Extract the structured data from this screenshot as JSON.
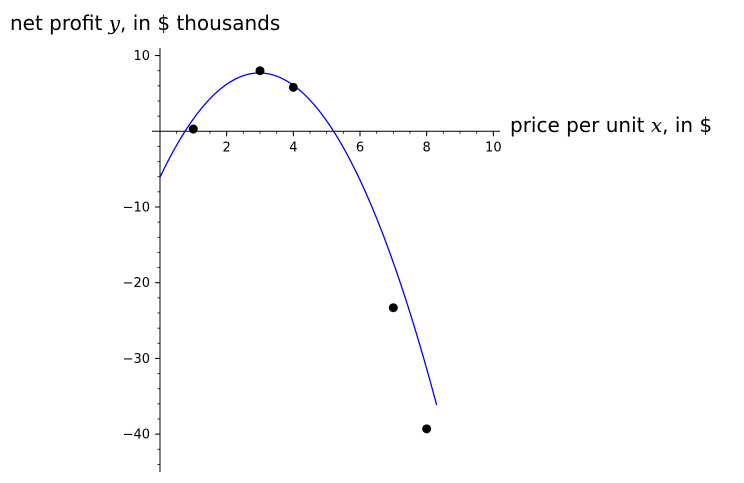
{
  "chart_data": {
    "type": "scatter",
    "xlabel": {
      "prefix": "price per unit ",
      "var": "x",
      "suffix": ", in $"
    },
    "ylabel": {
      "prefix": "net profit ",
      "var": "y",
      "suffix": ", in $ thousands"
    },
    "xlim": [
      0,
      10.2
    ],
    "ylim": [
      -45,
      11
    ],
    "x_ticks": [
      2,
      4,
      6,
      8,
      10
    ],
    "y_ticks": [
      10,
      -10,
      -20,
      -30,
      -40
    ],
    "x_tick_labels": [
      "2",
      "4",
      "6",
      "8",
      "10"
    ],
    "y_tick_labels": [
      "10",
      "−10",
      "−20",
      "−30",
      "−40"
    ],
    "x_minor_step": 0.5,
    "y_minor_step": 2,
    "grid": false,
    "points": {
      "x": [
        1,
        3,
        4,
        7,
        8
      ],
      "y": [
        0.3,
        8,
        5.8,
        -23.3,
        -39.3
      ]
    },
    "curve": {
      "kind": "quadratic",
      "a": -1.55,
      "h": 2.98,
      "k": 7.7,
      "x_range": [
        0,
        8.3
      ]
    },
    "colors": {
      "curve": "#0000ff",
      "points": "#000000",
      "axes": "#000000"
    }
  }
}
